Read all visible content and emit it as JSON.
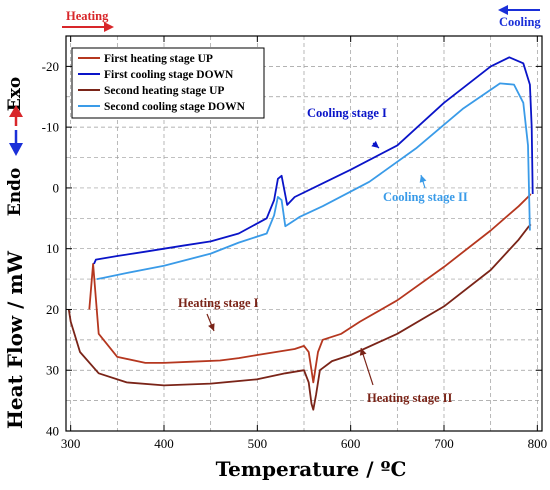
{
  "chart_data": {
    "type": "line",
    "xlabel": "Temperature / ºC",
    "ylabel": "Heat Flow / mW",
    "xlim": [
      295,
      805
    ],
    "ylim": [
      40,
      -25
    ],
    "y_inverted": true,
    "x_ticks": [
      300,
      400,
      500,
      600,
      700,
      800
    ],
    "y_ticks": [
      -20,
      -10,
      0,
      10,
      20,
      30,
      40
    ],
    "grid": true,
    "legend_position": "top-left",
    "series": [
      {
        "name": "First heating stage UP",
        "color": "#b5371f",
        "x": [
          320,
          324,
          330,
          350,
          380,
          400,
          430,
          460,
          480,
          500,
          520,
          540,
          550,
          555,
          558,
          560,
          562,
          565,
          570,
          590,
          610,
          650,
          700,
          750,
          780,
          790,
          793
        ],
        "y": [
          20.0,
          12.5,
          24.0,
          27.8,
          28.8,
          28.8,
          28.6,
          28.4,
          28.0,
          27.5,
          27.0,
          26.5,
          26.0,
          27.0,
          30.0,
          32.0,
          30.0,
          27.0,
          25.0,
          24.0,
          22.0,
          18.5,
          13.0,
          7.0,
          3.0,
          1.5,
          1.0
        ]
      },
      {
        "name": "First cooling stage DOWN",
        "color": "#0a14c8",
        "x": [
          795,
          794,
          792,
          785,
          770,
          750,
          700,
          650,
          600,
          560,
          540,
          532,
          526,
          522,
          518,
          510,
          480,
          450,
          420,
          400,
          380,
          350,
          327,
          325
        ],
        "y": [
          1.0,
          -10.0,
          -17.0,
          -20.5,
          -21.5,
          -20.0,
          -14.0,
          -7.0,
          -3.0,
          0.0,
          1.5,
          2.8,
          -2.0,
          -1.5,
          2.0,
          5.0,
          7.5,
          8.8,
          9.5,
          10.0,
          10.5,
          11.2,
          11.8,
          12.5
        ]
      },
      {
        "name": "Second heating stage UP",
        "color": "#7a2418",
        "x": [
          298,
          300,
          310,
          330,
          360,
          400,
          450,
          500,
          530,
          550,
          555,
          558,
          560,
          563,
          567,
          580,
          600,
          650,
          700,
          750,
          780,
          790,
          793
        ],
        "y": [
          20.0,
          22.0,
          27.0,
          30.5,
          32.0,
          32.5,
          32.2,
          31.5,
          30.5,
          30.0,
          32.0,
          35.5,
          36.5,
          34.0,
          30.0,
          28.5,
          27.5,
          24.0,
          19.5,
          13.5,
          8.5,
          6.5,
          6.0
        ]
      },
      {
        "name": "Second cooling stage DOWN",
        "color": "#3a9be8",
        "x": [
          792,
          790,
          785,
          775,
          760,
          720,
          670,
          620,
          570,
          545,
          535,
          530,
          526,
          522,
          518,
          510,
          480,
          450,
          400,
          360,
          335,
          328
        ],
        "y": [
          7.0,
          -7.0,
          -14.0,
          -17.0,
          -17.2,
          -13.0,
          -6.5,
          -1.0,
          3.0,
          4.8,
          5.8,
          6.3,
          2.0,
          1.5,
          4.5,
          7.5,
          9.0,
          10.8,
          12.8,
          14.0,
          14.8,
          15.0
        ]
      }
    ],
    "annotations": [
      {
        "text": "Cooling stage I",
        "color": "#0a14c8",
        "x": 627,
        "y": -8.2
      },
      {
        "text": "Cooling stage II",
        "color": "#3a9be8",
        "x": 683,
        "y": 4.5
      },
      {
        "text": "Heating stage I",
        "color": "#7a2418",
        "x": 459,
        "y": 27.5
      },
      {
        "text": "Heating stage II",
        "color": "#7a2418",
        "x": 570,
        "y": 33.5
      }
    ],
    "side_labels": {
      "heating": "Heating",
      "cooling": "Cooling",
      "exo": "Exo",
      "endo": "Endo"
    },
    "colors": {
      "heating_arrow": "#d8262a",
      "cooling_arrow": "#1a2fd8",
      "exo": "#d8262a",
      "endo": "#1a2fd8"
    }
  }
}
